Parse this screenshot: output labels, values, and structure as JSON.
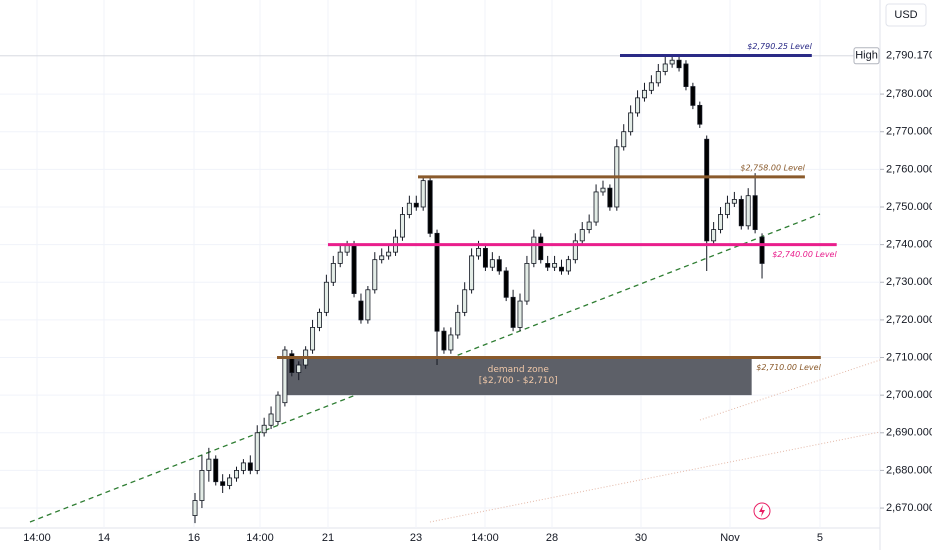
{
  "chart_data": {
    "type": "candlestick",
    "currency": "USD",
    "open": [
      2668,
      2672,
      2680,
      2683,
      2677,
      2676,
      2678,
      2680,
      2682,
      2680,
      2690,
      2692,
      2693,
      2698,
      2711,
      2706,
      2708,
      2712,
      2718,
      2722,
      2730,
      2735,
      2738,
      2740,
      2725,
      2720,
      2728,
      2736,
      2737,
      2738,
      2742,
      2748,
      2751,
      2750,
      2757,
      2743,
      2717,
      2712,
      2716,
      2722,
      2728,
      2737,
      2739,
      2734,
      2736,
      2733,
      2726,
      2718,
      2725,
      2735,
      2742,
      2735,
      2734,
      2734,
      2733,
      2736,
      2741,
      2744,
      2746,
      2754,
      2755,
      2750,
      2766,
      2770,
      2775,
      2779,
      2781,
      2783,
      2786,
      2788,
      2789,
      2788,
      2782,
      2777,
      2768,
      2741,
      2744,
      2748,
      2751,
      2752,
      2745,
      2753,
      2742
    ],
    "high": [
      2674,
      2684,
      2686,
      2684,
      2679,
      2679,
      2681,
      2683,
      2684,
      2692,
      2694,
      2697,
      2701,
      2713,
      2712,
      2709,
      2713,
      2720,
      2723,
      2732,
      2737,
      2740,
      2741,
      2741,
      2727,
      2729,
      2738,
      2739,
      2740,
      2744,
      2750,
      2753,
      2753,
      2758,
      2758,
      2744,
      2718,
      2718,
      2724,
      2730,
      2739,
      2741,
      2740,
      2738,
      2737,
      2734,
      2728,
      2727,
      2737,
      2744,
      2743,
      2737,
      2737,
      2736,
      2737,
      2743,
      2746,
      2748,
      2756,
      2757,
      2756,
      2768,
      2772,
      2777,
      2781,
      2783,
      2785,
      2788,
      2790,
      2790.17,
      2790,
      2789,
      2783,
      2778,
      2769,
      2746,
      2750,
      2753,
      2754,
      2753,
      2755,
      2759,
      2743
    ],
    "low": [
      2666,
      2670,
      2677,
      2676,
      2674,
      2675,
      2677,
      2679,
      2679,
      2679,
      2689,
      2691,
      2692,
      2697,
      2705,
      2704,
      2707,
      2711,
      2717,
      2721,
      2729,
      2734,
      2737,
      2726,
      2719,
      2719,
      2727,
      2735,
      2736,
      2737,
      2741,
      2747,
      2749,
      2749,
      2742,
      2708,
      2711,
      2711,
      2715,
      2721,
      2727,
      2736,
      2733,
      2733,
      2732,
      2725,
      2717,
      2717,
      2724,
      2734,
      2735,
      2733,
      2733,
      2732,
      2732,
      2735,
      2740,
      2743,
      2745,
      2753,
      2749,
      2749,
      2765,
      2769,
      2774,
      2778,
      2780,
      2782,
      2785,
      2787,
      2786,
      2781,
      2776,
      2771,
      2733,
      2740,
      2743,
      2747,
      2750,
      2744,
      2744,
      2743,
      2731
    ],
    "close": [
      2672,
      2680,
      2683,
      2677,
      2676,
      2678,
      2680,
      2682,
      2680,
      2690,
      2692,
      2695,
      2700,
      2712,
      2706,
      2708,
      2712,
      2718,
      2722,
      2730,
      2735,
      2738,
      2740,
      2727,
      2720,
      2728,
      2736,
      2737,
      2738,
      2742,
      2748,
      2751,
      2750,
      2757,
      2743,
      2717,
      2712,
      2716,
      2722,
      2728,
      2737,
      2739,
      2734,
      2736,
      2733,
      2726,
      2718,
      2725,
      2735,
      2742,
      2736,
      2734,
      2735,
      2733,
      2736,
      2741,
      2744,
      2746,
      2754,
      2755,
      2750,
      2766,
      2770,
      2775,
      2779,
      2781,
      2783,
      2786,
      2788,
      2789,
      2787,
      2782,
      2777,
      2772,
      2741,
      2744,
      2748,
      2751,
      2752,
      2745,
      2753,
      2744,
      2735
    ],
    "xlim": [
      -28.2,
      99.06
    ],
    "xticks": [
      {
        "value": -22.85,
        "label": "14:00"
      },
      {
        "value": -13.16,
        "label": "14"
      },
      {
        "value": -0.14,
        "label": "16"
      },
      {
        "value": 9.4,
        "label": "14:00"
      },
      {
        "value": 19.23,
        "label": "21"
      },
      {
        "value": 31.96,
        "label": "23"
      },
      {
        "value": 41.94,
        "label": "14:00"
      },
      {
        "value": 51.63,
        "label": "28"
      },
      {
        "value": 64.5,
        "label": "30"
      },
      {
        "value": 77.37,
        "label": "Nov"
      },
      {
        "value": 90.38,
        "label": "5"
      }
    ],
    "ylim": [
      2664.7,
      2805
    ],
    "yticks": [
      {
        "value": 2670,
        "label": "2,670.000"
      },
      {
        "value": 2680,
        "label": "2,680.000"
      },
      {
        "value": 2690,
        "label": "2,690.000"
      },
      {
        "value": 2700,
        "label": "2,700.000"
      },
      {
        "value": 2710,
        "label": "2,710.000"
      },
      {
        "value": 2720,
        "label": "2,720.000"
      },
      {
        "value": 2730,
        "label": "2,730.000"
      },
      {
        "value": 2740,
        "label": "2,740.000"
      },
      {
        "value": 2750,
        "label": "2,750.000"
      },
      {
        "value": 2760,
        "label": "2,760.000"
      },
      {
        "value": 2770,
        "label": "2,770.000"
      },
      {
        "value": 2780,
        "label": "2,780.000"
      }
    ],
    "levels": [
      {
        "value": 2790.25,
        "label": "$2,790.25 Level",
        "color": "#2a2a86",
        "x_range": [
          61.46,
          89.2
        ]
      },
      {
        "value": 2758,
        "label": "$2,758.00 Level",
        "color": "#8a5a2b",
        "x_range": [
          32.25,
          88.2
        ]
      },
      {
        "value": 2740,
        "label": "$2,740.00 Level",
        "color": "#e91e8c",
        "x_range": [
          19.23,
          92.8
        ]
      },
      {
        "value": 2710,
        "label": "$2,710.00 Level",
        "color": "#8a5a2b",
        "x_range": [
          11.86,
          90.5
        ]
      }
    ],
    "zone": {
      "title": "demand zone",
      "label": "[$2,700 - $2,710]",
      "range": [
        2700,
        2710
      ],
      "x_range": [
        13.0,
        80.5
      ],
      "color": "#5d6068"
    },
    "high_marker": {
      "label": "High",
      "value": 2790.17,
      "value_label": "2,790.170"
    }
  }
}
